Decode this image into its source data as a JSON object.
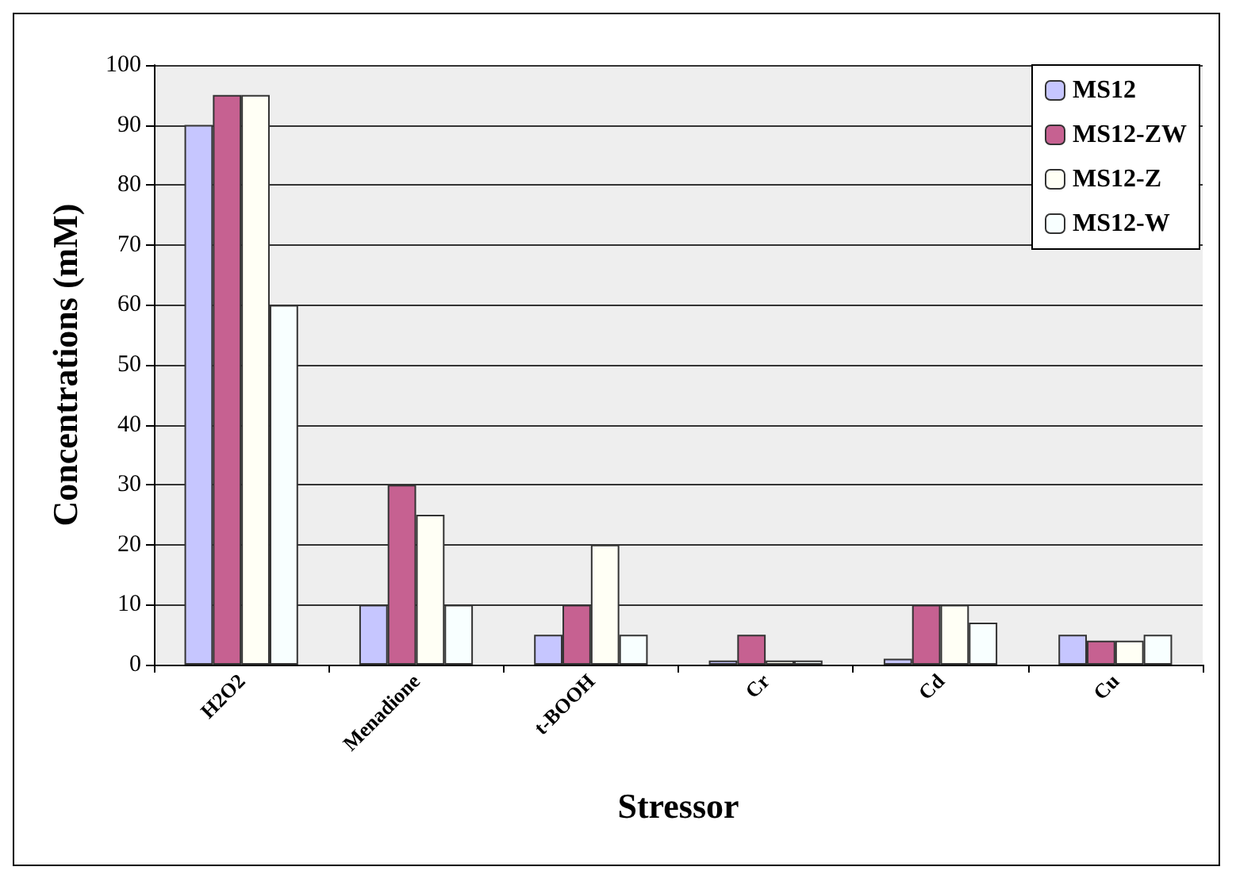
{
  "chart_data": {
    "type": "bar",
    "xlabel": "Stressor",
    "ylabel": "Concentrations (mM)",
    "categories": [
      "H2O2",
      "Menadione",
      "t-BOOH",
      "Cr",
      "Cd",
      "Cu"
    ],
    "series": [
      {
        "name": "MS12",
        "color": "#c6c6ff",
        "values": [
          90,
          10,
          5,
          0.7,
          1,
          5
        ]
      },
      {
        "name": "MS12-ZW",
        "color": "#c66191",
        "values": [
          95,
          30,
          10,
          5,
          10,
          4
        ]
      },
      {
        "name": "MS12-Z",
        "color": "#fffff5",
        "values": [
          95,
          25,
          20,
          0.7,
          10,
          4
        ]
      },
      {
        "name": "MS12-W",
        "color": "#f8ffff",
        "values": [
          60,
          10,
          5,
          0.7,
          7,
          5
        ]
      }
    ],
    "ylim": [
      0,
      100
    ],
    "yticks": [
      0,
      10,
      20,
      30,
      40,
      50,
      60,
      70,
      80,
      90,
      100
    ],
    "grid": "y",
    "legend": "top right"
  }
}
